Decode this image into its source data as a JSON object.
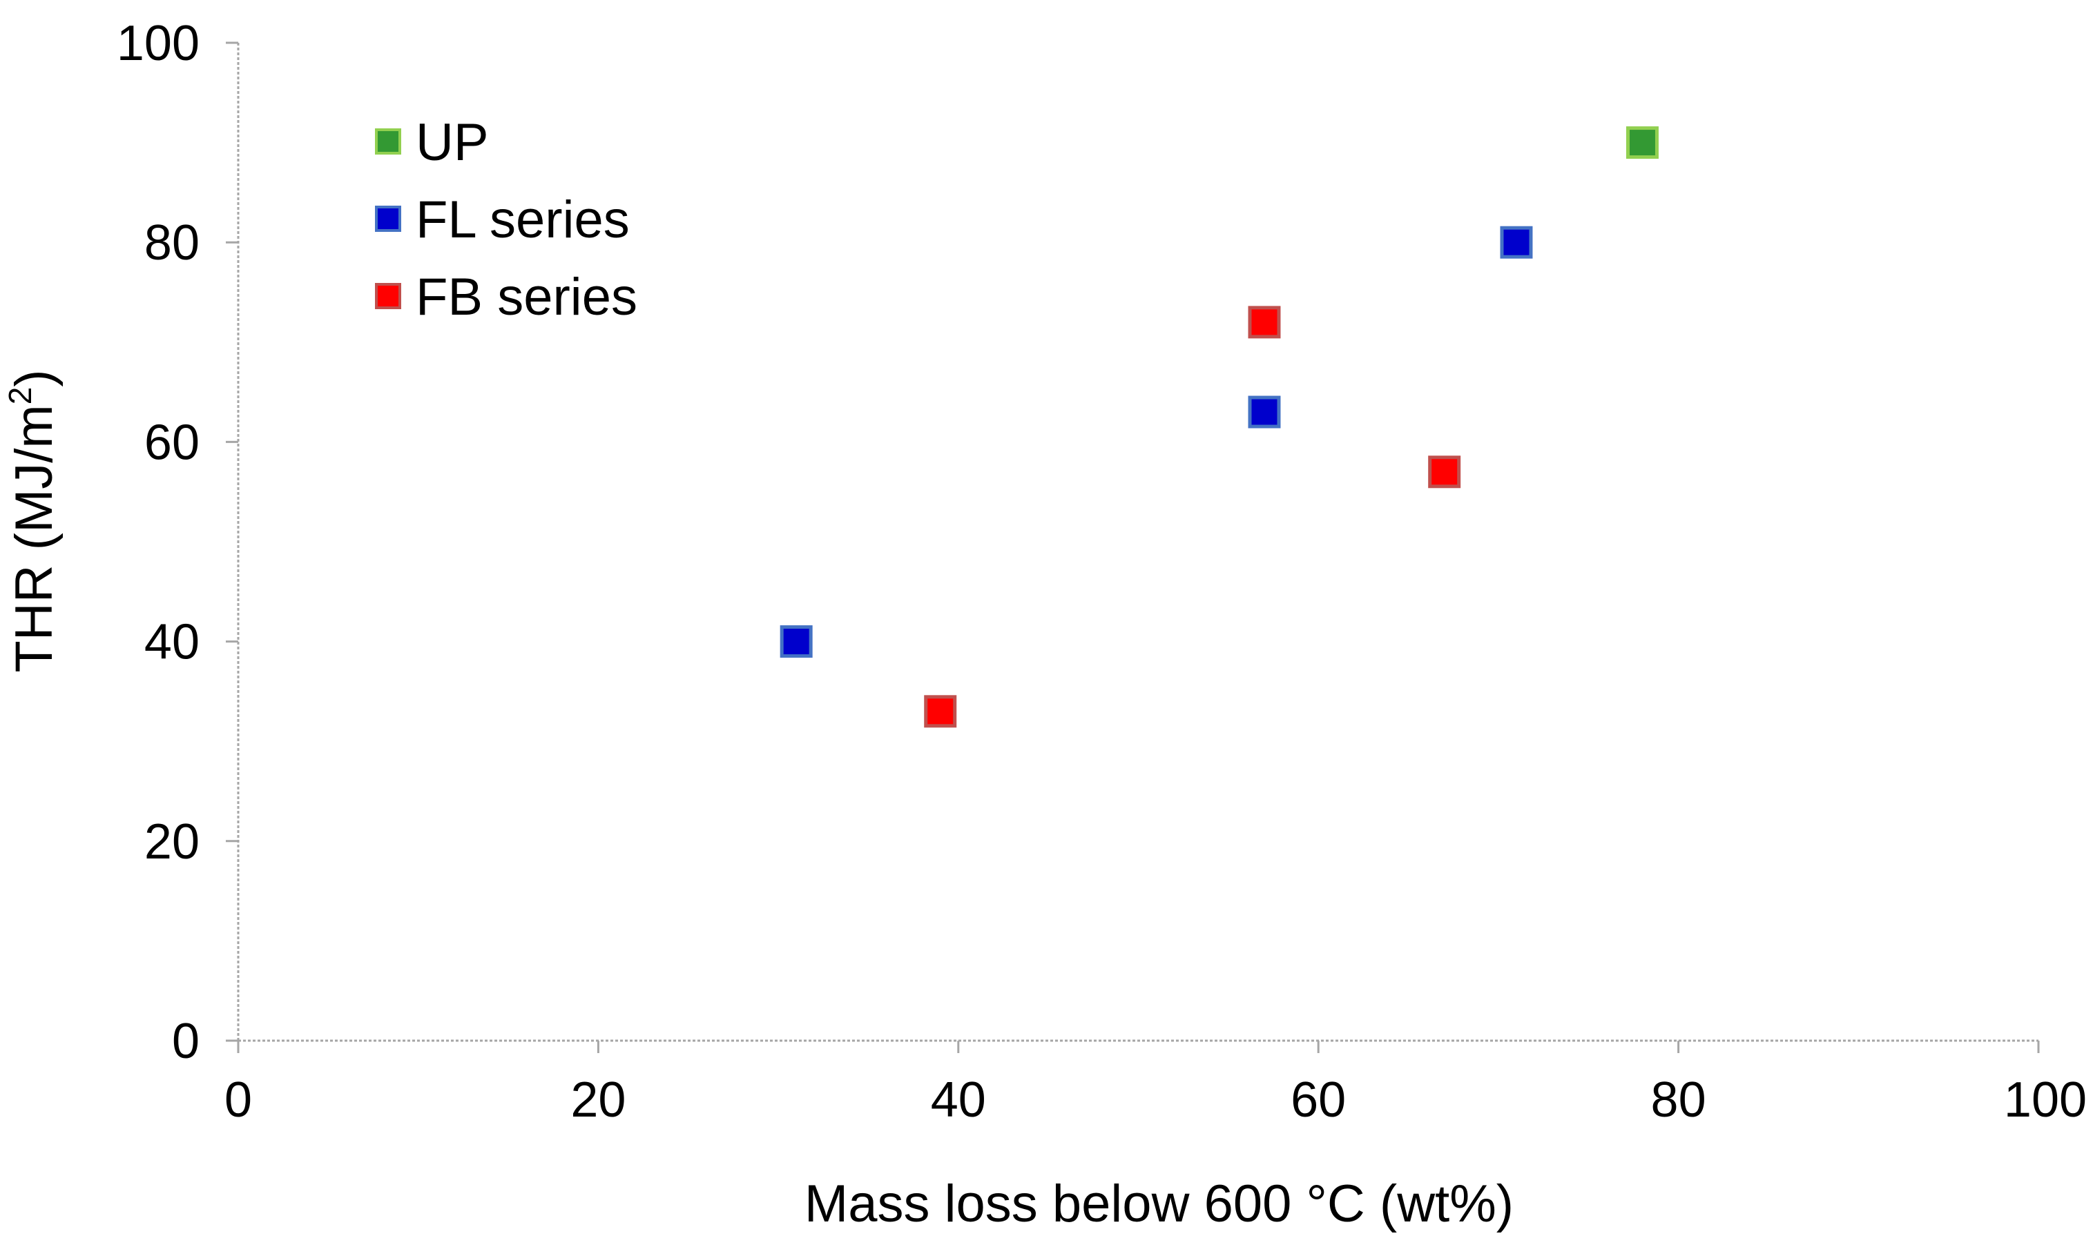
{
  "chart_data": {
    "type": "scatter",
    "title": "",
    "xlabel": "Mass loss below 600 °C (wt%)",
    "ylabel_main": "THR (MJ/m",
    "ylabel_sup": "2",
    "ylabel_close": ")",
    "xlim": [
      0,
      100
    ],
    "ylim": [
      0,
      100
    ],
    "x_ticks": [
      0,
      20,
      40,
      60,
      80,
      100
    ],
    "y_ticks": [
      0,
      20,
      40,
      60,
      80,
      100
    ],
    "x_tick_labels": [
      "0",
      "20",
      "40",
      "60",
      "80",
      "100"
    ],
    "y_tick_labels": [
      "0",
      "20",
      "40",
      "60",
      "80",
      "100"
    ],
    "grid": false,
    "legend_position": "top-left",
    "series": [
      {
        "name": "UP",
        "fill": "#339933",
        "edge": "#92d050",
        "points": [
          {
            "x": 78,
            "y": 90
          }
        ]
      },
      {
        "name": "FL series",
        "fill": "#0000cc",
        "edge": "#4472c4",
        "points": [
          {
            "x": 31,
            "y": 40
          },
          {
            "x": 57,
            "y": 63
          },
          {
            "x": 71,
            "y": 80
          }
        ]
      },
      {
        "name": "FB series",
        "fill": "#ff0000",
        "edge": "#c0504d",
        "points": [
          {
            "x": 39,
            "y": 33
          },
          {
            "x": 57,
            "y": 72
          },
          {
            "x": 67,
            "y": 57
          }
        ]
      }
    ]
  }
}
